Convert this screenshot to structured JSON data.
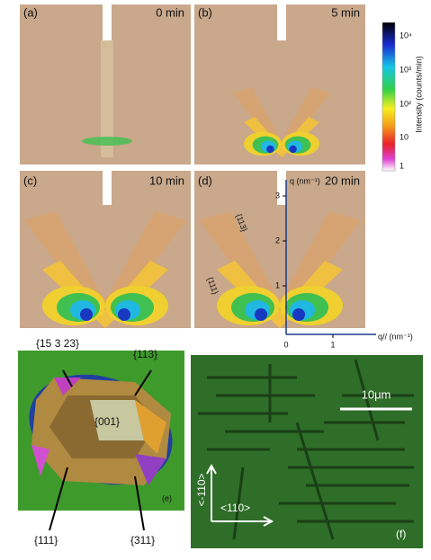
{
  "panels": {
    "a": {
      "label": "(a)",
      "time": "0 min"
    },
    "b": {
      "label": "(b)",
      "time": "5 min"
    },
    "c": {
      "label": "(c)",
      "time": "10 min"
    },
    "d": {
      "label": "(d)",
      "time": "20 min",
      "y_axis": "q (nm⁻¹)",
      "x_axis": "q// (nm⁻¹)",
      "yticks": [
        "1",
        "2",
        "3"
      ],
      "xticks": [
        "0",
        "1"
      ],
      "facet_113": "{113}",
      "facet_111": "{111}"
    },
    "e": {
      "label": "(e)",
      "facets": [
        "{15 3 23}",
        "{113}",
        "{001}",
        "{111}",
        "{311}"
      ]
    },
    "f": {
      "label": "(f)",
      "scale": "10μm",
      "dir_vertical": "<-110>",
      "dir_horizontal": "<110>"
    }
  },
  "colorbar": {
    "title": "Intensity (counts/min)",
    "ticks": [
      "10⁴",
      "10³",
      "10²",
      "10",
      "1"
    ]
  }
}
